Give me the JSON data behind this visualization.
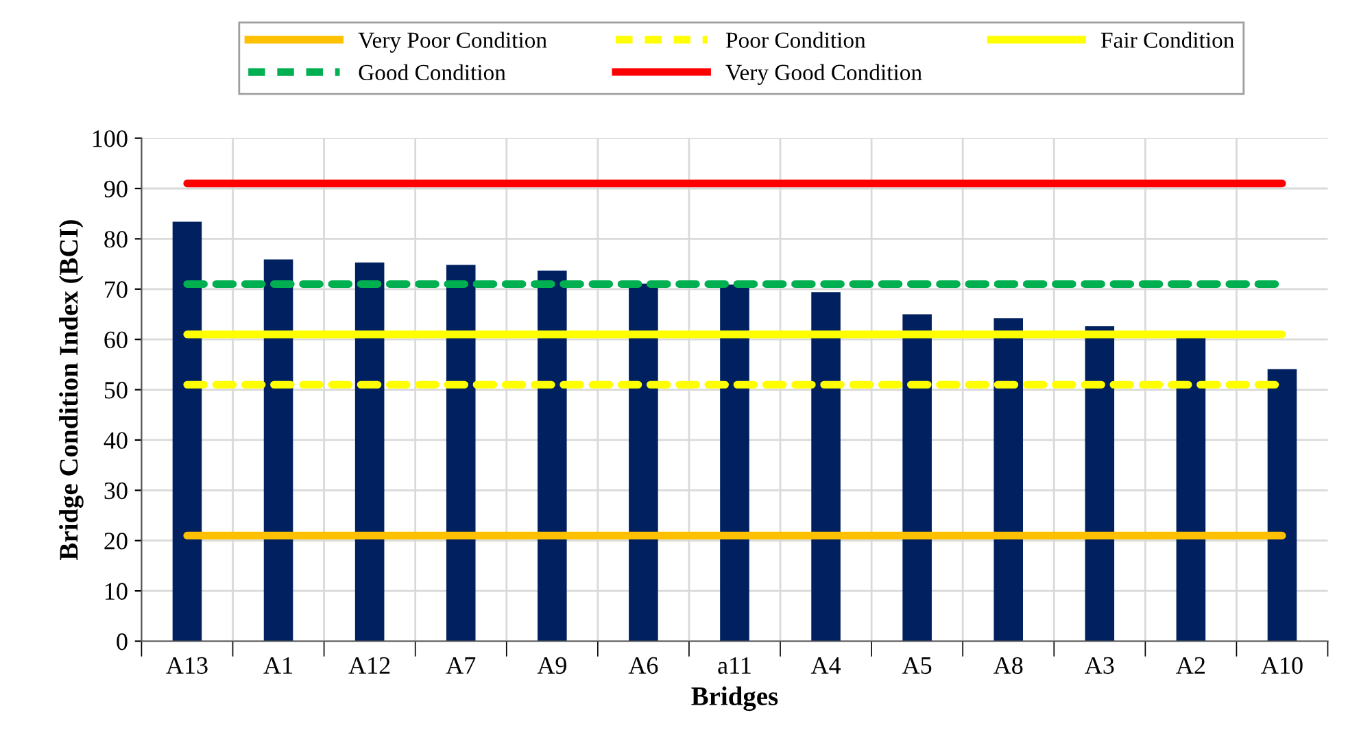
{
  "chart_data": {
    "type": "bar",
    "xlabel": "Bridges",
    "ylabel": "Bridge Condition Index (BCI)",
    "categories": [
      "A13",
      "A1",
      "A12",
      "A7",
      "A9",
      "A6",
      "a11",
      "A4",
      "A5",
      "A8",
      "A3",
      "A2",
      "A10"
    ],
    "series": [
      {
        "color": "#002060",
        "values": [
          83.4,
          75.9,
          75.3,
          74.8,
          73.7,
          71.1,
          70.9,
          69.4,
          65.0,
          64.2,
          62.6,
          60.3,
          54.1
        ]
      },
      {
        "type": "line",
        "name": "Very Poor Condition",
        "color": "#ffc000",
        "line_style": "solid",
        "values": [
          21,
          21,
          21,
          21,
          21,
          21,
          21,
          21,
          21,
          21,
          21,
          21,
          21
        ]
      },
      {
        "type": "line",
        "name": "Poor Condition",
        "color": "#ffff00",
        "line_style": "dashed",
        "values": [
          51,
          51,
          51,
          51,
          51,
          51,
          51,
          51,
          51,
          51,
          51,
          51,
          51
        ]
      },
      {
        "type": "line",
        "name": "Fair Condition",
        "color": "#ffff00",
        "line_style": "solid",
        "values": [
          61,
          61,
          61,
          61,
          61,
          61,
          61,
          61,
          61,
          61,
          61,
          61,
          61
        ]
      },
      {
        "type": "line",
        "name": "Good Condition",
        "color": "#00b050",
        "line_style": "dashed",
        "values": [
          71,
          71,
          71,
          71,
          71,
          71,
          71,
          71,
          71,
          71,
          71,
          71,
          71
        ]
      },
      {
        "type": "line",
        "name": "Very Good Condition",
        "color": "#ff0000",
        "line_style": "solid",
        "values": [
          91,
          91,
          91,
          91,
          91,
          91,
          91,
          91,
          91,
          91,
          91,
          91,
          91
        ]
      }
    ],
    "ylim": [
      0,
      100
    ],
    "yticks": [
      0,
      10,
      20,
      30,
      40,
      50,
      60,
      70,
      80,
      90,
      100
    ],
    "grid": true,
    "legend": "top",
    "marker": "none"
  }
}
